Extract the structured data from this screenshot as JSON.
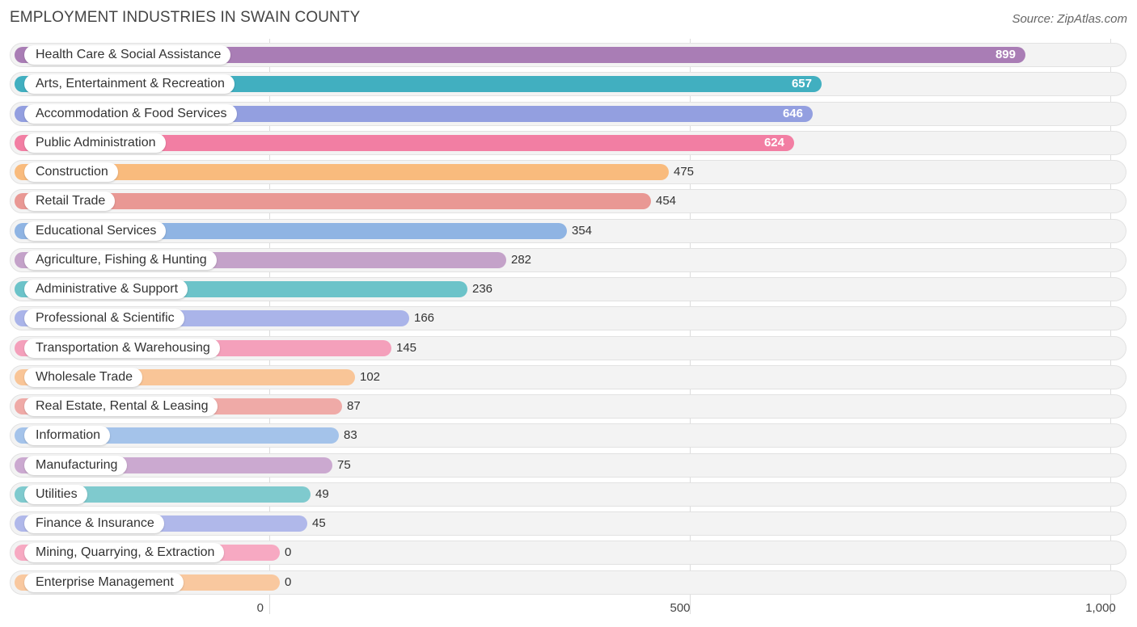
{
  "title": "EMPLOYMENT INDUSTRIES IN SWAIN COUNTY",
  "source": "Source: ZipAtlas.com",
  "chart_data": {
    "type": "bar",
    "orientation": "horizontal",
    "title": "EMPLOYMENT INDUSTRIES IN SWAIN COUNTY",
    "xlabel": "",
    "ylabel": "",
    "xlim": [
      0,
      1000
    ],
    "xticks": [
      0,
      500,
      1000
    ],
    "xtick_labels": [
      "0",
      "500",
      "1,000"
    ],
    "categories": [
      "Health Care & Social Assistance",
      "Arts, Entertainment & Recreation",
      "Accommodation & Food Services",
      "Public Administration",
      "Construction",
      "Retail Trade",
      "Educational Services",
      "Agriculture, Fishing & Hunting",
      "Administrative & Support",
      "Professional & Scientific",
      "Transportation & Warehousing",
      "Wholesale Trade",
      "Real Estate, Rental & Leasing",
      "Information",
      "Manufacturing",
      "Utilities",
      "Finance & Insurance",
      "Mining, Quarrying, & Extraction",
      "Enterprise Management"
    ],
    "values": [
      899,
      657,
      646,
      624,
      475,
      454,
      354,
      282,
      236,
      166,
      145,
      102,
      87,
      83,
      75,
      49,
      45,
      0,
      0
    ],
    "value_labels": [
      "899",
      "657",
      "646",
      "624",
      "475",
      "454",
      "354",
      "282",
      "236",
      "166",
      "145",
      "102",
      "87",
      "83",
      "75",
      "49",
      "45",
      "0",
      "0"
    ],
    "colors": [
      "#a97db5",
      "#41afc0",
      "#939fe0",
      "#f27ea3",
      "#f9bb7d",
      "#e99894",
      "#8fb4e3",
      "#c4a2c9",
      "#6cc3c9",
      "#aab4e9",
      "#f4a0bb",
      "#f9c597",
      "#efaaa7",
      "#a4c3ea",
      "#cba9d0",
      "#7fcace",
      "#b0b8ea",
      "#f7a9c2",
      "#f9c89f"
    ]
  }
}
